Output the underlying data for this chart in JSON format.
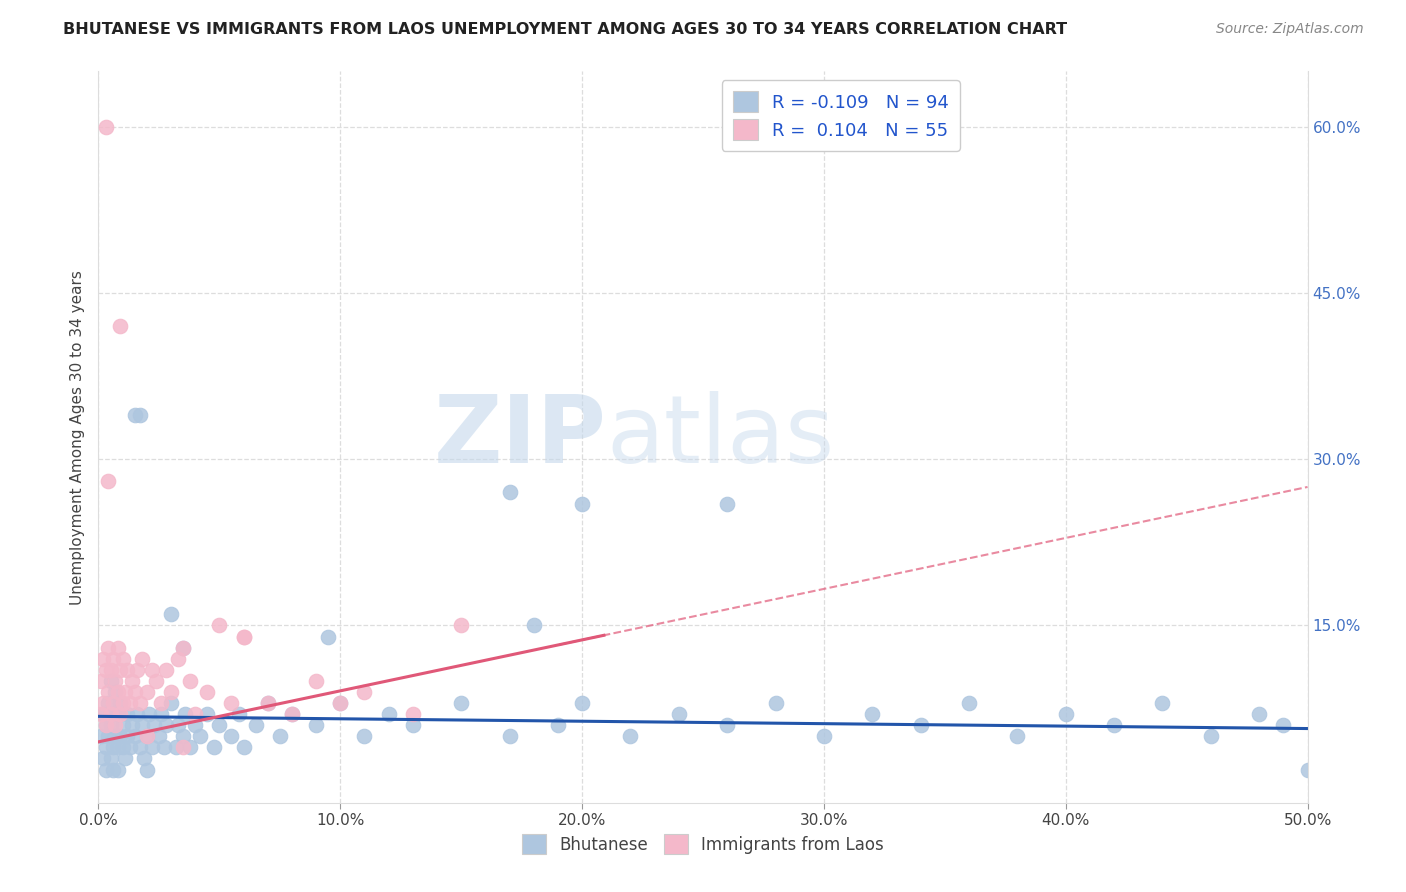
{
  "title": "BHUTANESE VS IMMIGRANTS FROM LAOS UNEMPLOYMENT AMONG AGES 30 TO 34 YEARS CORRELATION CHART",
  "source": "Source: ZipAtlas.com",
  "ylabel": "Unemployment Among Ages 30 to 34 years",
  "xlim": [
    0.0,
    0.5
  ],
  "ylim": [
    -0.01,
    0.65
  ],
  "blue_color": "#aec6df",
  "blue_line_color": "#2255aa",
  "pink_color": "#f4b8ca",
  "pink_line_color": "#e05878",
  "R_blue": -0.109,
  "N_blue": 94,
  "R_pink": 0.104,
  "N_pink": 55,
  "blue_intercept": 0.068,
  "blue_slope": -0.022,
  "pink_intercept": 0.045,
  "pink_slope": 0.46,
  "watermark_zip": "ZIP",
  "watermark_atlas": "atlas",
  "bhutanese_x": [
    0.001,
    0.002,
    0.002,
    0.003,
    0.003,
    0.003,
    0.004,
    0.004,
    0.005,
    0.005,
    0.005,
    0.006,
    0.006,
    0.006,
    0.007,
    0.007,
    0.008,
    0.008,
    0.008,
    0.009,
    0.009,
    0.01,
    0.01,
    0.011,
    0.012,
    0.012,
    0.013,
    0.014,
    0.015,
    0.016,
    0.017,
    0.018,
    0.019,
    0.02,
    0.021,
    0.022,
    0.023,
    0.025,
    0.026,
    0.027,
    0.028,
    0.03,
    0.032,
    0.033,
    0.035,
    0.036,
    0.038,
    0.04,
    0.042,
    0.045,
    0.048,
    0.05,
    0.055,
    0.058,
    0.06,
    0.065,
    0.07,
    0.075,
    0.08,
    0.09,
    0.1,
    0.11,
    0.12,
    0.13,
    0.15,
    0.17,
    0.19,
    0.2,
    0.22,
    0.24,
    0.26,
    0.28,
    0.3,
    0.32,
    0.34,
    0.36,
    0.38,
    0.4,
    0.42,
    0.44,
    0.46,
    0.48,
    0.49,
    0.5,
    0.17,
    0.2,
    0.03,
    0.095,
    0.035,
    0.18,
    0.015,
    0.017,
    0.26,
    0.02
  ],
  "bhutanese_y": [
    0.05,
    0.03,
    0.07,
    0.04,
    0.06,
    0.02,
    0.05,
    0.08,
    0.03,
    0.06,
    0.1,
    0.04,
    0.07,
    0.02,
    0.05,
    0.09,
    0.04,
    0.07,
    0.02,
    0.05,
    0.08,
    0.04,
    0.06,
    0.03,
    0.05,
    0.07,
    0.04,
    0.06,
    0.05,
    0.07,
    0.04,
    0.06,
    0.03,
    0.05,
    0.07,
    0.04,
    0.06,
    0.05,
    0.07,
    0.04,
    0.06,
    0.08,
    0.04,
    0.06,
    0.05,
    0.07,
    0.04,
    0.06,
    0.05,
    0.07,
    0.04,
    0.06,
    0.05,
    0.07,
    0.04,
    0.06,
    0.08,
    0.05,
    0.07,
    0.06,
    0.08,
    0.05,
    0.07,
    0.06,
    0.08,
    0.05,
    0.06,
    0.08,
    0.05,
    0.07,
    0.06,
    0.08,
    0.05,
    0.07,
    0.06,
    0.08,
    0.05,
    0.07,
    0.06,
    0.08,
    0.05,
    0.07,
    0.06,
    0.02,
    0.27,
    0.26,
    0.16,
    0.14,
    0.13,
    0.15,
    0.34,
    0.34,
    0.26,
    0.02
  ],
  "laos_x": [
    0.001,
    0.001,
    0.002,
    0.002,
    0.003,
    0.003,
    0.004,
    0.004,
    0.005,
    0.005,
    0.006,
    0.006,
    0.007,
    0.007,
    0.008,
    0.008,
    0.009,
    0.009,
    0.01,
    0.01,
    0.011,
    0.012,
    0.013,
    0.014,
    0.015,
    0.016,
    0.017,
    0.018,
    0.02,
    0.022,
    0.024,
    0.026,
    0.028,
    0.03,
    0.033,
    0.035,
    0.038,
    0.04,
    0.045,
    0.05,
    0.055,
    0.06,
    0.07,
    0.08,
    0.09,
    0.1,
    0.11,
    0.13,
    0.15,
    0.003,
    0.009,
    0.004,
    0.02,
    0.035,
    0.06
  ],
  "laos_y": [
    0.07,
    0.1,
    0.08,
    0.12,
    0.06,
    0.11,
    0.09,
    0.13,
    0.07,
    0.11,
    0.08,
    0.12,
    0.06,
    0.1,
    0.09,
    0.13,
    0.07,
    0.11,
    0.08,
    0.12,
    0.09,
    0.11,
    0.08,
    0.1,
    0.09,
    0.11,
    0.08,
    0.12,
    0.09,
    0.11,
    0.1,
    0.08,
    0.11,
    0.09,
    0.12,
    0.13,
    0.1,
    0.07,
    0.09,
    0.15,
    0.08,
    0.14,
    0.08,
    0.07,
    0.1,
    0.08,
    0.09,
    0.07,
    0.15,
    0.6,
    0.42,
    0.28,
    0.05,
    0.04,
    0.14
  ]
}
